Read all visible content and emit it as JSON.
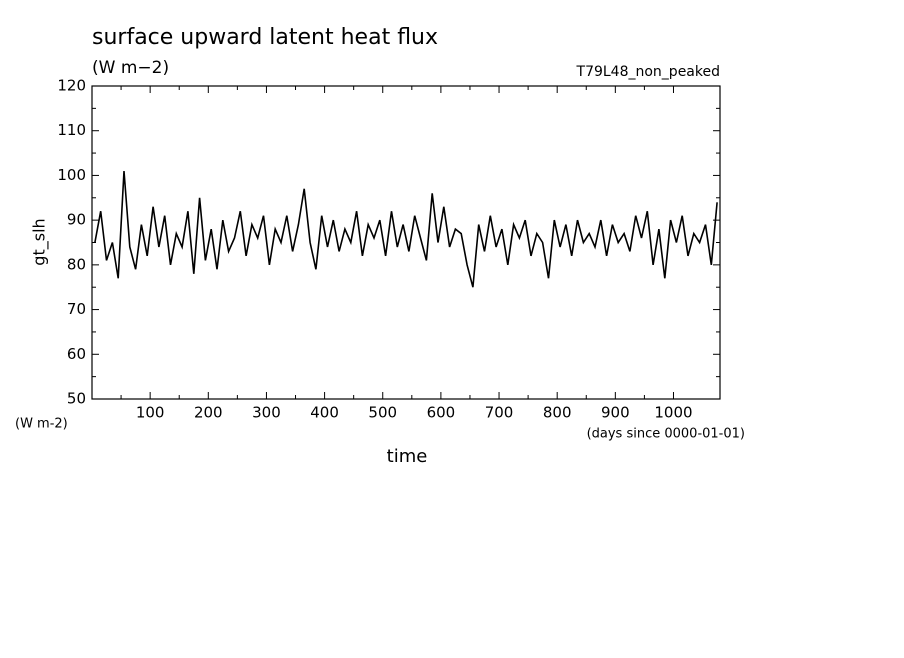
{
  "chart_data": {
    "type": "line",
    "title": "surface upward latent heat flux",
    "subtitle": "(W m−2)",
    "annotation": "T79L48_non_peaked",
    "y_label": "gt_slh",
    "y_units": "(W m-2)",
    "x_units": "(days since 0000-01-01)",
    "x_label": "time",
    "xlim": [
      0,
      1080
    ],
    "xticks": [
      100,
      200,
      300,
      400,
      500,
      600,
      700,
      800,
      900,
      1000
    ],
    "ylim": [
      50,
      120
    ],
    "yticks": [
      50,
      60,
      70,
      80,
      90,
      100,
      110,
      120
    ],
    "grid": false,
    "color": "#000000",
    "x": [
      5,
      15,
      25,
      35,
      45,
      55,
      65,
      75,
      85,
      95,
      105,
      115,
      125,
      135,
      145,
      155,
      165,
      175,
      185,
      195,
      205,
      215,
      225,
      235,
      245,
      255,
      265,
      275,
      285,
      295,
      305,
      315,
      325,
      335,
      345,
      355,
      365,
      375,
      385,
      395,
      405,
      415,
      425,
      435,
      445,
      455,
      465,
      475,
      485,
      495,
      505,
      515,
      525,
      535,
      545,
      555,
      565,
      575,
      585,
      595,
      605,
      615,
      625,
      635,
      645,
      655,
      665,
      675,
      685,
      695,
      705,
      715,
      725,
      735,
      745,
      755,
      765,
      775,
      785,
      795,
      805,
      815,
      825,
      835,
      845,
      855,
      865,
      875,
      885,
      895,
      905,
      915,
      925,
      935,
      945,
      955,
      965,
      975,
      985,
      995,
      1005,
      1015,
      1025,
      1035,
      1045,
      1055,
      1065,
      1075
    ],
    "values": [
      85,
      92,
      81,
      85,
      77,
      101,
      84,
      79,
      89,
      82,
      93,
      84,
      91,
      80,
      87,
      84,
      92,
      78,
      95,
      81,
      88,
      79,
      90,
      83,
      86,
      92,
      82,
      89,
      86,
      91,
      80,
      88,
      85,
      91,
      83,
      89,
      97,
      85,
      79,
      91,
      84,
      90,
      83,
      88,
      85,
      92,
      82,
      89,
      86,
      90,
      82,
      92,
      84,
      89,
      83,
      91,
      86,
      81,
      96,
      85,
      93,
      84,
      88,
      87,
      80,
      75,
      89,
      83,
      91,
      84,
      88,
      80,
      89,
      86,
      90,
      82,
      87,
      85,
      77,
      90,
      84,
      89,
      82,
      90,
      85,
      87,
      84,
      90,
      82,
      89,
      85,
      87,
      83,
      91,
      86,
      92,
      80,
      88,
      77,
      90,
      85,
      91,
      82,
      87,
      85,
      89,
      80,
      94
    ]
  }
}
